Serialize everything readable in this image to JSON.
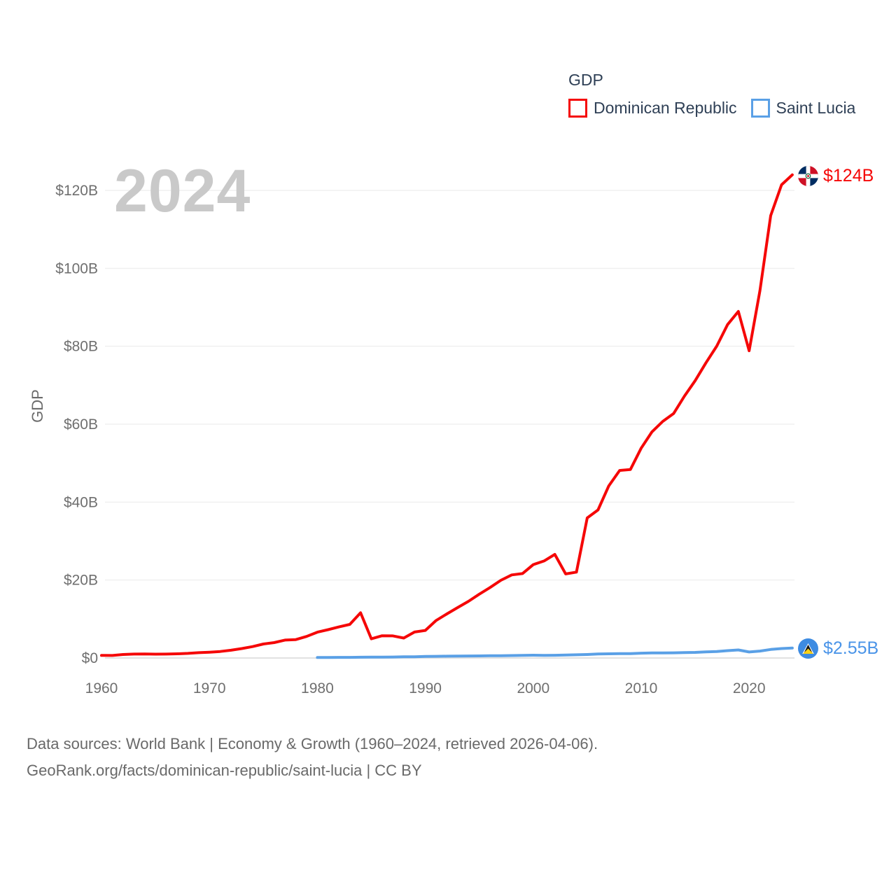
{
  "watermark": "2024",
  "legend": {
    "title": "GDP",
    "items": [
      {
        "label": "Dominican Republic",
        "color": "#F50707"
      },
      {
        "label": "Saint Lucia",
        "color": "#5AA0E6"
      }
    ]
  },
  "end_labels": [
    {
      "series": "Dominican Republic",
      "text": "$124B",
      "color": "#F50707",
      "flag_icon": "dominican-republic-flag"
    },
    {
      "series": "Saint Lucia",
      "text": "$2.55B",
      "color": "#4A94E8",
      "flag_icon": "saint-lucia-flag"
    }
  ],
  "footer": {
    "line1": "Data sources: World Bank | Economy & Growth (1960–2024, retrieved 2026-04-06).",
    "line2": "GeoRank.org/facts/dominican-republic/saint-lucia | CC BY"
  },
  "chart_data": {
    "type": "line",
    "title": "GDP",
    "xlabel": "",
    "ylabel": "GDP",
    "unit": "USD billions (current US$)",
    "x_range": [
      1960,
      2024
    ],
    "ylim": [
      0,
      130
    ],
    "grid": "horizontal",
    "legend_position": "top-right",
    "x_ticks": [
      1960,
      1970,
      1980,
      1990,
      2000,
      2010,
      2020
    ],
    "y_ticks": [
      {
        "value": 0,
        "label": "$0"
      },
      {
        "value": 20,
        "label": "$20B"
      },
      {
        "value": 40,
        "label": "$40B"
      },
      {
        "value": 60,
        "label": "$60B"
      },
      {
        "value": 80,
        "label": "$80B"
      },
      {
        "value": 100,
        "label": "$100B"
      },
      {
        "value": 120,
        "label": "$120B"
      }
    ],
    "series": [
      {
        "name": "Dominican Republic",
        "color": "#F50707",
        "x_start": 1960,
        "end_label": "$124B",
        "values": [
          0.67,
          0.64,
          0.9,
          1.0,
          1.05,
          0.99,
          1.0,
          1.08,
          1.19,
          1.36,
          1.49,
          1.67,
          1.99,
          2.42,
          2.93,
          3.6,
          3.95,
          4.59,
          4.73,
          5.54,
          6.63,
          7.27,
          7.97,
          8.62,
          11.6,
          4.92,
          5.72,
          5.68,
          5.12,
          6.67,
          7.07,
          9.62,
          11.31,
          12.96,
          14.55,
          16.39,
          18.09,
          19.94,
          21.33,
          21.67,
          23.97,
          24.89,
          26.58,
          21.58,
          22.04,
          35.94,
          37.99,
          44.17,
          48.13,
          48.38,
          53.86,
          58.04,
          60.72,
          62.73,
          67.18,
          71.17,
          75.76,
          80.03,
          85.56,
          88.94,
          78.84,
          94.24,
          113.54,
          121.44,
          124.0
        ]
      },
      {
        "name": "Saint Lucia",
        "color": "#5AA0E6",
        "x_start": 1980,
        "end_label": "$2.55B",
        "values": [
          0.13,
          0.15,
          0.16,
          0.17,
          0.19,
          0.21,
          0.24,
          0.26,
          0.3,
          0.33,
          0.4,
          0.43,
          0.47,
          0.49,
          0.52,
          0.54,
          0.57,
          0.59,
          0.63,
          0.67,
          0.71,
          0.69,
          0.7,
          0.76,
          0.82,
          0.9,
          1.02,
          1.08,
          1.14,
          1.12,
          1.24,
          1.29,
          1.3,
          1.33,
          1.4,
          1.44,
          1.57,
          1.66,
          1.88,
          2.06,
          1.54,
          1.77,
          2.2,
          2.42,
          2.55
        ]
      }
    ]
  }
}
